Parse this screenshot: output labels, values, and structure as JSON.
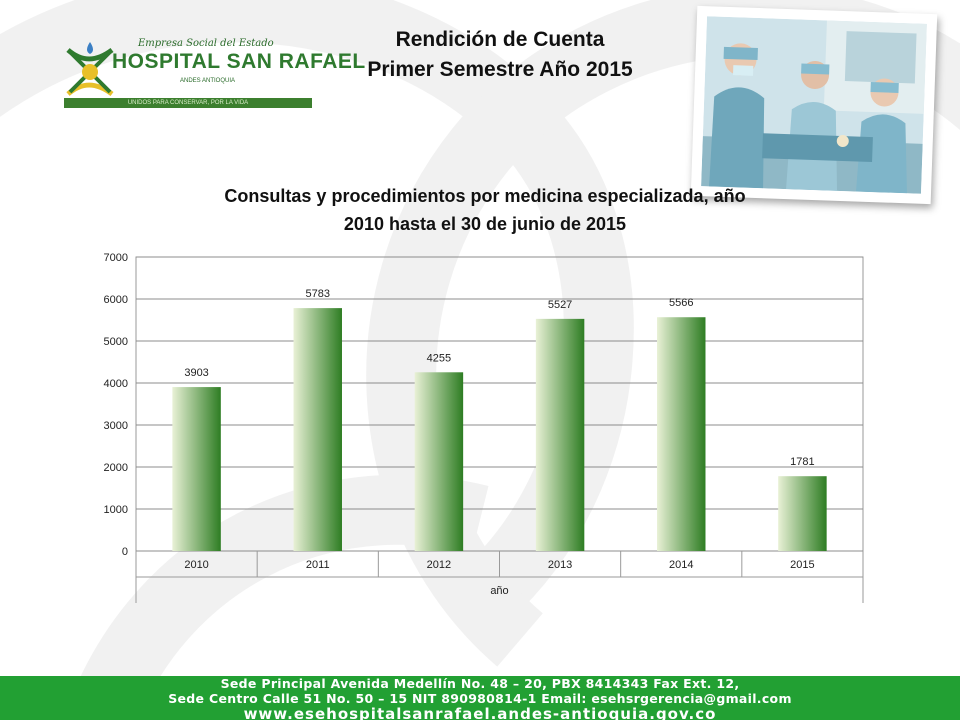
{
  "logo": {
    "line1": "Empresa Social del Estado",
    "line2": "HOSPITAL SAN RAFAEL",
    "line3": "ANDES ANTIOQUIA",
    "line4": "UNIDOS PARA CONSERVAR, POR LA VIDA",
    "colors": {
      "green": "#2f7a2f",
      "gold": "#e8c02a",
      "blue": "#3b7fc4"
    }
  },
  "slide_title": {
    "line1": "Rendición de Cuenta",
    "line2": "Primer Semestre  Año  2015"
  },
  "photo": {
    "subject": "surgical-team-photo"
  },
  "chart_data": {
    "type": "bar",
    "title_line1": "Consultas  y procedimientos por medicina especializada, año",
    "title_line2": "2010  hasta el 30 de junio de 2015",
    "categories": [
      "2010",
      "2011",
      "2012",
      "2013",
      "2014",
      "2015"
    ],
    "values": [
      3903,
      5783,
      4255,
      5527,
      5566,
      1781
    ],
    "data_labels": [
      "3903",
      "5783",
      "4255",
      "5527",
      "5566",
      "1781"
    ],
    "yticks": [
      "0",
      "1000",
      "2000",
      "3000",
      "4000",
      "5000",
      "6000",
      "7000"
    ],
    "ylim": [
      0,
      7000
    ],
    "xlabel": "año",
    "ylabel": "",
    "grid": true,
    "legend": "none",
    "bar_gradient": {
      "light": "#e9f1d6",
      "dark": "#2e7d23"
    }
  },
  "footer": {
    "line1": "Sede Principal Avenida Medellín No. 48 – 20, PBX 8414343 Fax Ext. 12,",
    "line2": "Sede Centro Calle 51 No. 50 – 15 NIT 890980814-1 Email: esehsrgerencia@gmail.com",
    "line3": "www.esehospitalsanrafael.andes-antioquia.gov.co",
    "color": "#22a033"
  }
}
